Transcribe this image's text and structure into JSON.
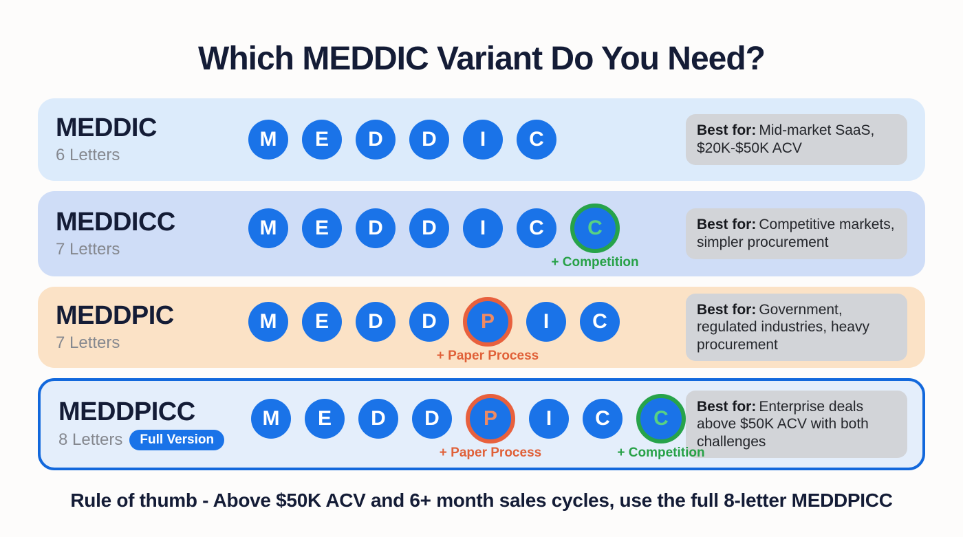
{
  "title": "Which MEDDIC Variant Do You Need?",
  "footer": "Rule of thumb - Above $50K ACV and 6+ month sales cycles, use the full 8-letter MEDDPICC",
  "best_for_label": "Best for:",
  "colors": {
    "circle_blue": "#1a73e8",
    "orange_highlight": "#e8603d",
    "green_highlight": "#27a34a",
    "navy_text": "#141c36",
    "badge_blue": "#1a73e8",
    "best_for_box": "#d2d4d8"
  },
  "rows": [
    {
      "name": "MEDDIC",
      "subtitle": "6 Letters",
      "best_for": "Mid-market SaaS, $20K-$50K ACV",
      "bg": "#dcebfb",
      "letters": [
        {
          "char": "M",
          "variant": "blue"
        },
        {
          "char": "E",
          "variant": "blue"
        },
        {
          "char": "D",
          "variant": "blue"
        },
        {
          "char": "D",
          "variant": "blue"
        },
        {
          "char": "I",
          "variant": "blue"
        },
        {
          "char": "C",
          "variant": "blue"
        }
      ]
    },
    {
      "name": "MEDDICC",
      "subtitle": "7 Letters",
      "best_for": "Competitive markets, simpler procurement",
      "bg": "#cfddf7",
      "letters": [
        {
          "char": "M",
          "variant": "blue"
        },
        {
          "char": "E",
          "variant": "blue"
        },
        {
          "char": "D",
          "variant": "blue"
        },
        {
          "char": "D",
          "variant": "blue"
        },
        {
          "char": "I",
          "variant": "blue"
        },
        {
          "char": "C",
          "variant": "blue"
        },
        {
          "char": "C",
          "variant": "green",
          "label": "+ Competition"
        }
      ]
    },
    {
      "name": "MEDDPIC",
      "subtitle": "7 Letters",
      "best_for": "Government, regulated industries, heavy procurement",
      "bg": "#fbe2c6",
      "letters": [
        {
          "char": "M",
          "variant": "blue"
        },
        {
          "char": "E",
          "variant": "blue"
        },
        {
          "char": "D",
          "variant": "blue"
        },
        {
          "char": "D",
          "variant": "blue"
        },
        {
          "char": "P",
          "variant": "orange",
          "label": "+ Paper Process"
        },
        {
          "char": "I",
          "variant": "blue"
        },
        {
          "char": "C",
          "variant": "blue"
        }
      ]
    },
    {
      "name": "MEDDPICC",
      "subtitle": "8 Letters",
      "badge": "Full Version",
      "best_for": "Enterprise deals above $50K ACV with both challenges",
      "bg": "#e4eefb",
      "border": "#1268dc",
      "letters": [
        {
          "char": "M",
          "variant": "blue"
        },
        {
          "char": "E",
          "variant": "blue"
        },
        {
          "char": "D",
          "variant": "blue"
        },
        {
          "char": "D",
          "variant": "blue"
        },
        {
          "char": "P",
          "variant": "orange",
          "label": "+ Paper Process"
        },
        {
          "char": "I",
          "variant": "blue"
        },
        {
          "char": "C",
          "variant": "blue"
        },
        {
          "char": "C",
          "variant": "green",
          "label": "+ Competition"
        }
      ]
    }
  ]
}
